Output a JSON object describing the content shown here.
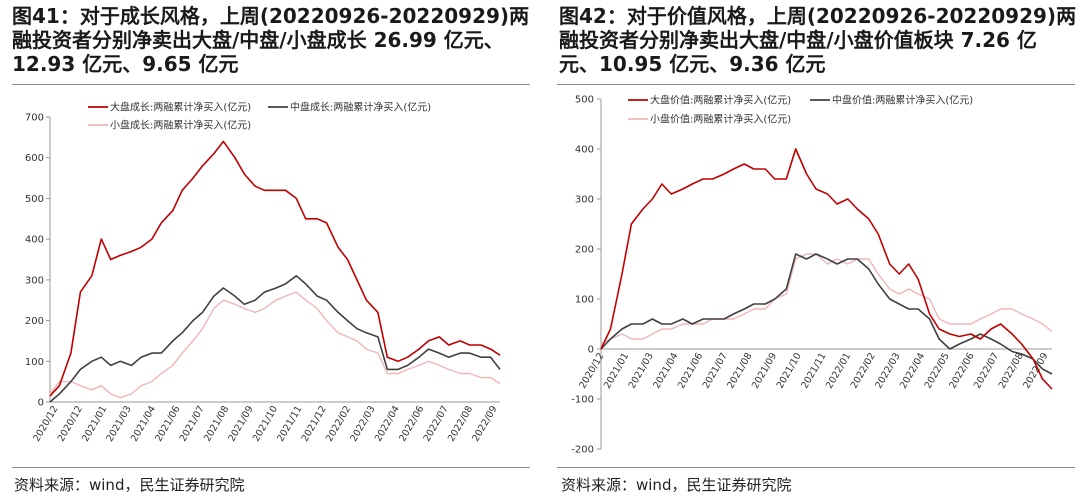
{
  "figures": [
    {
      "title_lines": [
        "图41：对于成长风格，上周(20220926-20220929)两",
        "融投资者分别净卖出大盘/中盘/小盘成长 26.99 亿元、",
        "12.93 亿元、9.65 亿元"
      ],
      "source": "资料来源：wind，民生证券研究院"
    },
    {
      "title_lines": [
        "图42：对于价值风格，上周(20220926-20220929)两",
        "融投资者分别净卖出大盘/中盘/小盘价值板块  7.26 亿",
        "元、10.95 亿元、9.36 亿元"
      ],
      "source": "资料来源：wind，民生证券研究院"
    }
  ],
  "chart_data": [
    {
      "type": "line",
      "ylim": [
        0,
        700
      ],
      "y_ticks": [
        700,
        600,
        500,
        400,
        300,
        200,
        100,
        0
      ],
      "x_tick_labels": [
        "2020/12",
        "2020/12",
        "2021/01",
        "2021/03",
        "2021/04",
        "2021/06",
        "2021/07",
        "2021/08",
        "2021/09",
        "2021/10",
        "2021/11",
        "2021/12",
        "2022/02",
        "2022/03",
        "2022/04",
        "2022/06",
        "2022/07",
        "2022/08",
        "2022/09"
      ],
      "grid": false,
      "legend": "top-left",
      "x": [
        "2020/12/01",
        "2020/12/15",
        "2021/01/01",
        "2021/01/15",
        "2021/02/01",
        "2021/02/15",
        "2021/03/01",
        "2021/03/15",
        "2021/04/01",
        "2021/04/15",
        "2021/05/01",
        "2021/05/15",
        "2021/06/01",
        "2021/06/15",
        "2021/07/01",
        "2021/07/15",
        "2021/08/01",
        "2021/08/15",
        "2021/09/01",
        "2021/09/15",
        "2021/10/01",
        "2021/10/15",
        "2021/11/01",
        "2021/11/15",
        "2021/12/01",
        "2021/12/15",
        "2022/01/01",
        "2022/01/15",
        "2022/02/01",
        "2022/02/15",
        "2022/03/01",
        "2022/03/15",
        "2022/04/01",
        "2022/04/15",
        "2022/05/01",
        "2022/05/15",
        "2022/06/01",
        "2022/06/15",
        "2022/07/01",
        "2022/07/15",
        "2022/08/01",
        "2022/08/15",
        "2022/09/01",
        "2022/09/15",
        "2022/09/29"
      ],
      "series": [
        {
          "name": "大盘成长:两融累计净买入(亿元)",
          "color": "#c00000",
          "values": [
            15,
            40,
            120,
            270,
            310,
            400,
            350,
            360,
            370,
            380,
            400,
            440,
            470,
            520,
            550,
            580,
            610,
            640,
            600,
            560,
            530,
            520,
            520,
            520,
            500,
            450,
            450,
            440,
            380,
            350,
            300,
            250,
            220,
            110,
            100,
            110,
            130,
            150,
            160,
            140,
            150,
            140,
            140,
            130,
            115
          ]
        },
        {
          "name": "中盘成长:两融累计净买入(亿元)",
          "color": "#404040",
          "values": [
            0,
            20,
            50,
            80,
            100,
            110,
            90,
            100,
            90,
            110,
            120,
            120,
            150,
            170,
            200,
            220,
            260,
            280,
            260,
            240,
            250,
            270,
            280,
            290,
            310,
            290,
            260,
            250,
            220,
            200,
            180,
            170,
            160,
            80,
            80,
            90,
            110,
            130,
            120,
            110,
            120,
            120,
            110,
            110,
            80
          ]
        },
        {
          "name": "小盘成长:两融累计净买入(亿元)",
          "color": "#f0b6b6",
          "values": [
            20,
            50,
            50,
            40,
            30,
            40,
            20,
            10,
            20,
            40,
            50,
            70,
            90,
            120,
            150,
            180,
            230,
            250,
            240,
            230,
            220,
            230,
            250,
            260,
            270,
            250,
            230,
            200,
            170,
            160,
            150,
            130,
            120,
            70,
            70,
            80,
            90,
            100,
            90,
            80,
            70,
            70,
            60,
            60,
            45
          ]
        }
      ]
    },
    {
      "type": "line",
      "ylim": [
        -200,
        500
      ],
      "y_ticks": [
        500,
        400,
        300,
        200,
        100,
        0,
        -100,
        -200
      ],
      "x_tick_labels": [
        "2020/12",
        "2021/01",
        "2021/03",
        "2021/04",
        "2021/06",
        "2021/07",
        "2021/08",
        "2021/09",
        "2021/10",
        "2021/11",
        "2022/01",
        "2022/02",
        "2022/03",
        "2022/04",
        "2022/05",
        "2022/06",
        "2022/07",
        "2022/08",
        "2022/09"
      ],
      "grid": false,
      "legend": "top-left",
      "x": [
        "2020/12/01",
        "2020/12/15",
        "2021/01/01",
        "2021/01/15",
        "2021/02/01",
        "2021/02/15",
        "2021/03/01",
        "2021/03/15",
        "2021/04/01",
        "2021/04/15",
        "2021/05/01",
        "2021/05/15",
        "2021/06/01",
        "2021/06/15",
        "2021/07/01",
        "2021/07/15",
        "2021/08/01",
        "2021/08/15",
        "2021/09/01",
        "2021/09/15",
        "2021/10/01",
        "2021/10/15",
        "2021/11/01",
        "2021/11/15",
        "2021/12/01",
        "2021/12/15",
        "2022/01/01",
        "2022/01/15",
        "2022/02/01",
        "2022/02/15",
        "2022/03/01",
        "2022/03/15",
        "2022/04/01",
        "2022/04/15",
        "2022/05/01",
        "2022/05/15",
        "2022/06/01",
        "2022/06/15",
        "2022/07/01",
        "2022/07/15",
        "2022/08/01",
        "2022/08/15",
        "2022/09/01",
        "2022/09/15",
        "2022/09/29"
      ],
      "series": [
        {
          "name": "大盘价值:两融累计净买入(亿元)",
          "color": "#c00000",
          "values": [
            0,
            40,
            150,
            250,
            280,
            300,
            330,
            310,
            320,
            330,
            340,
            340,
            350,
            360,
            370,
            360,
            360,
            340,
            340,
            400,
            350,
            320,
            310,
            290,
            300,
            280,
            260,
            230,
            170,
            150,
            170,
            140,
            70,
            40,
            30,
            25,
            30,
            20,
            40,
            50,
            30,
            10,
            -20,
            -60,
            -80
          ]
        },
        {
          "name": "中盘价值:两融累计净买入(亿元)",
          "color": "#404040",
          "values": [
            0,
            20,
            40,
            50,
            50,
            60,
            50,
            50,
            60,
            50,
            60,
            60,
            60,
            70,
            80,
            90,
            90,
            100,
            120,
            190,
            180,
            190,
            180,
            170,
            180,
            180,
            160,
            130,
            100,
            90,
            80,
            80,
            60,
            20,
            0,
            10,
            20,
            30,
            20,
            10,
            -5,
            -10,
            -20,
            -40,
            -50
          ]
        },
        {
          "name": "小盘价值:两融累计净买入(亿元)",
          "color": "#f0b6b6",
          "values": [
            10,
            20,
            30,
            20,
            20,
            30,
            40,
            40,
            50,
            50,
            50,
            60,
            60,
            60,
            70,
            80,
            80,
            100,
            110,
            180,
            190,
            190,
            170,
            180,
            170,
            180,
            180,
            150,
            120,
            110,
            120,
            110,
            100,
            60,
            50,
            50,
            50,
            60,
            70,
            80,
            80,
            70,
            60,
            50,
            35
          ]
        }
      ]
    }
  ]
}
